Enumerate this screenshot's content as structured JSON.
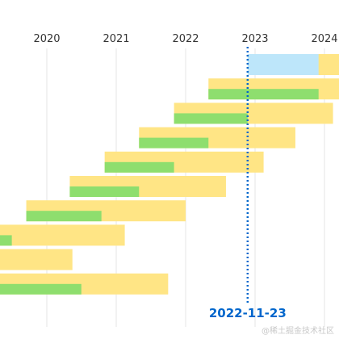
{
  "chart_data": {
    "type": "gantt",
    "x_ticks": [
      "2020",
      "2021",
      "2022",
      "2023",
      "2024"
    ],
    "today_label": "2022-11-23",
    "rows": [
      {
        "yellow": [
          "2022-11-23",
          "2024-12-31"
        ],
        "blue": [
          "2022-11-23",
          "2023-12-01"
        ]
      },
      {
        "yellow": [
          "2022-05-01",
          "2024-12-31"
        ],
        "green": [
          "2022-05-01",
          "2023-12-01"
        ]
      },
      {
        "yellow": [
          "2021-11-01",
          "2024-02-15"
        ],
        "green": [
          "2021-11-01",
          "2022-11-23"
        ]
      },
      {
        "yellow": [
          "2021-05-01",
          "2023-08-01"
        ],
        "green": [
          "2021-05-01",
          "2022-05-01"
        ]
      },
      {
        "yellow": [
          "2020-11-01",
          "2023-02-15"
        ],
        "green": [
          "2020-11-01",
          "2021-11-01"
        ]
      },
      {
        "yellow": [
          "2020-05-01",
          "2022-08-01"
        ],
        "green": [
          "2020-05-01",
          "2021-05-01"
        ]
      },
      {
        "yellow": [
          "2019-09-15",
          "2022-01-01"
        ],
        "green": [
          "2019-09-15",
          "2020-10-15"
        ]
      },
      {
        "yellow": [
          "2019-01-01",
          "2021-02-15"
        ],
        "green": [
          "2019-01-01",
          "2019-07-01"
        ]
      },
      {
        "yellow": [
          "2019-01-01",
          "2020-05-15"
        ]
      },
      {
        "yellow": [
          "2019-01-01",
          "2021-10-01"
        ],
        "green": [
          "2019-01-01",
          "2020-07-01"
        ]
      }
    ]
  },
  "colors": {
    "yellow": "#ffe585",
    "green": "#8ede6e",
    "blue": "#bde6fa",
    "today": "#0066cc",
    "grid": "#e6e6e6"
  },
  "watermark": "@稀土掘金技术社区"
}
